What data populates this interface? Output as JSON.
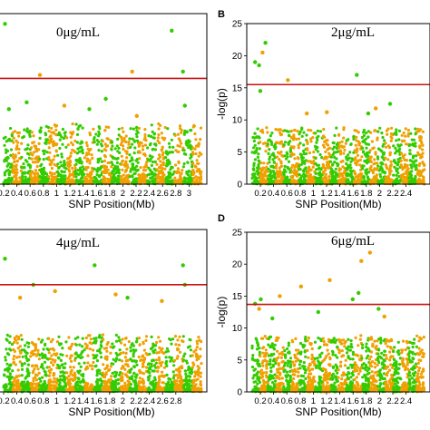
{
  "chart_data": [
    {
      "panel_letter": "",
      "type": "scatter",
      "title": "0μg/mL",
      "xlabel": "SNP Position(Mb)",
      "ylabel": "",
      "xlim": [
        0,
        3
      ],
      "x_ticks": [
        "0.2",
        "0.4",
        "0.6",
        "0.8",
        "1",
        "1.2",
        "1.4",
        "1.6",
        "1.8",
        "2",
        "2.2",
        "2.4",
        "2.6",
        "2.8",
        "3"
      ],
      "y_ticks": [],
      "ylim": [
        0,
        25
      ],
      "threshold": 15.5,
      "series": [
        {
          "color": "#33cc00",
          "x": [
            0.02,
            0.08,
            0.35,
            1.3,
            1.55,
            2.55,
            2.72,
            2.75
          ],
          "y": [
            23.5,
            11,
            12,
            11,
            12.5,
            22.5,
            16.5,
            11.5
          ]
        },
        {
          "color": "#f0a000",
          "x": [
            0.55,
            0.92,
            1.95,
            2.02
          ],
          "y": [
            16,
            11.5,
            16.5,
            10
          ]
        }
      ]
    },
    {
      "panel_letter": "B",
      "type": "scatter",
      "title": "2μg/mL",
      "xlabel": "SNP Position(Mb)",
      "ylabel": "-log(p)",
      "xlim": [
        0,
        3
      ],
      "x_ticks": [
        "0.2",
        "0.4",
        "0.6",
        "0.8",
        "1",
        "1.2",
        "1.4",
        "1.6",
        "1.8",
        "2",
        "2.2",
        "2.4"
      ],
      "y_ticks": [
        "0",
        "5",
        "10",
        "15",
        "20",
        "25"
      ],
      "ylim": [
        0,
        25
      ],
      "threshold": 15.5,
      "series": [
        {
          "color": "#33cc00",
          "x": [
            0.05,
            0.12,
            0.14,
            0.23,
            1.82,
            2.02,
            2.4
          ],
          "y": [
            19,
            18.5,
            14.5,
            22,
            17,
            11,
            12.5
          ]
        },
        {
          "color": "#f0a000",
          "x": [
            0.18,
            0.62,
            0.95,
            1.3,
            2.15
          ],
          "y": [
            20.5,
            16.2,
            11,
            11.2,
            11.8
          ]
        }
      ]
    },
    {
      "panel_letter": "",
      "type": "scatter",
      "title": "4μg/mL",
      "xlabel": "SNP Position(Mb)",
      "ylabel": "",
      "xlim": [
        0,
        3
      ],
      "x_ticks": [
        "0.2",
        "0.4",
        "0.6",
        "0.8",
        "1",
        "1.2",
        "1.4",
        "1.6",
        "1.8",
        "2",
        "2.2",
        "2.4",
        "2.6",
        "2.8"
      ],
      "y_ticks": [],
      "ylim": [
        0,
        25
      ],
      "threshold": 16.5,
      "series": [
        {
          "color": "#33cc00",
          "x": [
            0.02,
            0.45,
            1.38,
            1.88,
            2.72,
            2.75
          ],
          "y": [
            20.5,
            16.5,
            19.5,
            14.5,
            19.5,
            16.5
          ]
        },
        {
          "color": "#f0a000",
          "x": [
            0.25,
            0.78,
            1.7,
            2.4
          ],
          "y": [
            14.5,
            15.5,
            15,
            14
          ]
        }
      ]
    },
    {
      "panel_letter": "D",
      "type": "scatter",
      "title": "6μg/mL",
      "xlabel": "SNP Position(Mb)",
      "ylabel": "-log(p)",
      "xlim": [
        0,
        3
      ],
      "x_ticks": [
        "0.2",
        "0.4",
        "0.6",
        "0.8",
        "1",
        "1.2",
        "1.4",
        "1.6",
        "1.8",
        "2",
        "2.2",
        "2.4"
      ],
      "y_ticks": [
        "0",
        "5",
        "10",
        "15",
        "20",
        "25"
      ],
      "ylim": [
        0,
        25
      ],
      "threshold": 13.7,
      "series": [
        {
          "color": "#33cc00",
          "x": [
            0.05,
            0.15,
            0.35,
            1.15,
            1.75,
            1.85,
            2.2
          ],
          "y": [
            13.8,
            14.5,
            11.5,
            12.5,
            14.5,
            15.5,
            13
          ]
        },
        {
          "color": "#f0a000",
          "x": [
            0.12,
            0.48,
            0.85,
            1.35,
            1.9,
            2.05,
            2.3
          ],
          "y": [
            13,
            15,
            16.5,
            17.5,
            20.5,
            21.8,
            11.8
          ]
        }
      ]
    }
  ]
}
